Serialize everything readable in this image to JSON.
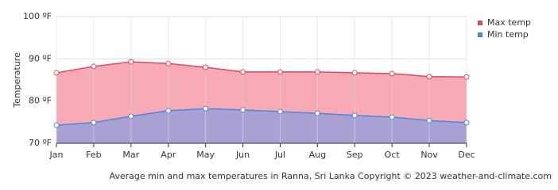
{
  "chart_data": {
    "type": "area-line",
    "y_label": "Temperature",
    "footer": "Average min and max temperatures in Ranna, Sri Lanka   Copyright © 2023  weather-and-climate.com",
    "categories": [
      "Jan",
      "Feb",
      "Mar",
      "Apr",
      "May",
      "Jun",
      "Jul",
      "Aug",
      "Sep",
      "Oct",
      "Nov",
      "Dec"
    ],
    "series": [
      {
        "name": "Max temp",
        "color": "#e0475a",
        "fill": "#f7aab3",
        "values": [
          86.7,
          88.2,
          89.3,
          88.9,
          88.0,
          86.9,
          86.9,
          86.9,
          86.7,
          86.5,
          85.8,
          85.7
        ]
      },
      {
        "name": "Min temp",
        "color": "#4a86e0",
        "fill": "#a9a0d4",
        "values": [
          74.3,
          74.9,
          76.4,
          77.7,
          78.2,
          77.9,
          77.5,
          77.1,
          76.6,
          76.2,
          75.4,
          74.9
        ]
      }
    ],
    "ylim": [
      70,
      100
    ],
    "yticks": [
      {
        "value": 70,
        "label": "70 ºF"
      },
      {
        "value": 80,
        "label": "80 ºF"
      },
      {
        "value": 90,
        "label": "90 ºF"
      },
      {
        "value": 100,
        "label": "100 ºF"
      }
    ],
    "grid": true
  }
}
